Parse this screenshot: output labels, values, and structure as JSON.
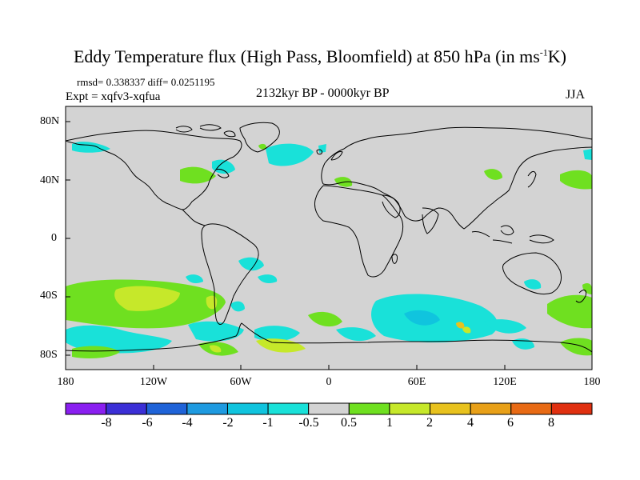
{
  "title": {
    "main": "Eddy Temperature flux (High Pass, Bloomfield) at 850 hPa (in ms",
    "superscript": "-1",
    "unit_tail": "K)"
  },
  "stats": "rmsd= 0.338337 diff= 0.0251195",
  "experiment": "Expt = xqfv3-xqfua",
  "period": "2132kyr BP - 0000kyr BP",
  "season": "JJA",
  "axes": {
    "lat_labels": [
      "80N",
      "40N",
      "0",
      "40S",
      "80S"
    ],
    "lon_labels": [
      "180",
      "120W",
      "60W",
      "0",
      "60E",
      "120E",
      "180"
    ]
  },
  "colorbar": {
    "labels": [
      "-8",
      "-6",
      "-4",
      "-2",
      "-1",
      "-0.5",
      "0.5",
      "1",
      "2",
      "4",
      "6",
      "8"
    ],
    "colors": [
      "#8a1ff0",
      "#3b2fd6",
      "#1f63d8",
      "#1e9ae0",
      "#10c4de",
      "#19e1d9",
      "#d3d3d3",
      "#6fe020",
      "#c6e82a",
      "#e8c21e",
      "#e8a018",
      "#e86a14",
      "#e03010"
    ]
  },
  "colors": {
    "ocean": "#d3d3d3",
    "coast": "#000000"
  }
}
